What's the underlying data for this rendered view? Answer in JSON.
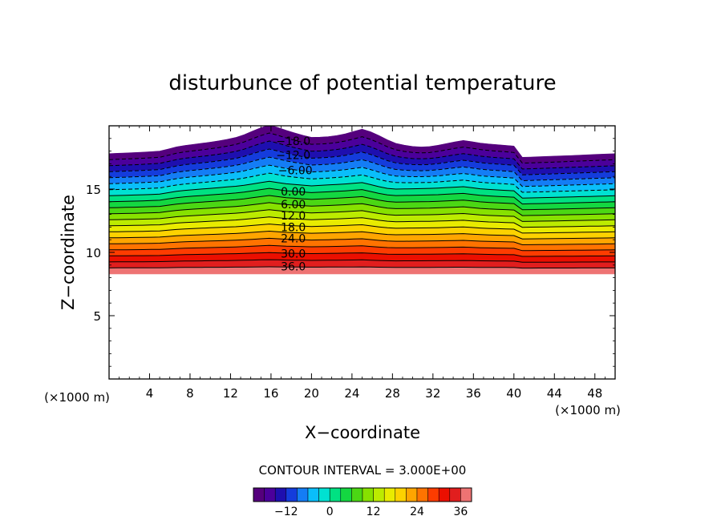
{
  "chart_data": {
    "type": "contour",
    "title": "disturbunce of potential temperature",
    "xlabel": "X−coordinate",
    "ylabel": "Z−coordinate",
    "x_unit": "(×1000 m)",
    "y_unit": "(×1000 m)",
    "xlim": [
      0,
      50
    ],
    "ylim": [
      0,
      20
    ],
    "x_ticks": [
      "4",
      "8",
      "12",
      "16",
      "20",
      "24",
      "28",
      "32",
      "36",
      "40",
      "44",
      "48"
    ],
    "y_ticks": [
      "5",
      "10",
      "15"
    ],
    "contour_interval_text": "CONTOUR INTERVAL = 3.000E+00",
    "contour_interval": 3,
    "field_range": [
      -21,
      39
    ],
    "colorbar_ticks": [
      "−12",
      "0",
      "12",
      "24",
      "36"
    ],
    "colorbar_values": [
      -12,
      0,
      12,
      24,
      36
    ],
    "negative_contours_dashed": true,
    "contour_labels": [
      {
        "text": "−18.0",
        "x": 18.2,
        "y": 18.8
      },
      {
        "text": "−12.0",
        "x": 18.2,
        "y": 17.7
      },
      {
        "text": "−6.00",
        "x": 18.4,
        "y": 16.5
      },
      {
        "text": "0.00",
        "x": 18.2,
        "y": 14.8
      },
      {
        "text": "6.00",
        "x": 18.2,
        "y": 13.8
      },
      {
        "text": "12.0",
        "x": 18.2,
        "y": 12.9
      },
      {
        "text": "18.0",
        "x": 18.2,
        "y": 12.0
      },
      {
        "text": "24.0",
        "x": 18.2,
        "y": 11.1
      },
      {
        "text": "30.0",
        "x": 18.2,
        "y": 9.9
      },
      {
        "text": "36.0",
        "x": 18.2,
        "y": 8.9
      }
    ],
    "top_boundary": [
      [
        0,
        17.8
      ],
      [
        3,
        17.9
      ],
      [
        5,
        18.0
      ],
      [
        7,
        18.4
      ],
      [
        10,
        18.7
      ],
      [
        13,
        19.0
      ],
      [
        15,
        19.4
      ],
      [
        16,
        19.6
      ],
      [
        17,
        19.3
      ],
      [
        20,
        19.0
      ],
      [
        23,
        19.2
      ],
      [
        25,
        19.4
      ],
      [
        27,
        18.8
      ],
      [
        28,
        18.6
      ],
      [
        32,
        18.7
      ],
      [
        35,
        18.9
      ],
      [
        37,
        18.6
      ],
      [
        40,
        18.4
      ],
      [
        40.5,
        17.5
      ],
      [
        44,
        17.6
      ],
      [
        47,
        17.7
      ],
      [
        50,
        17.8
      ]
    ],
    "bottom_boundary": [
      [
        0,
        8.3
      ],
      [
        50,
        8.3
      ]
    ]
  }
}
